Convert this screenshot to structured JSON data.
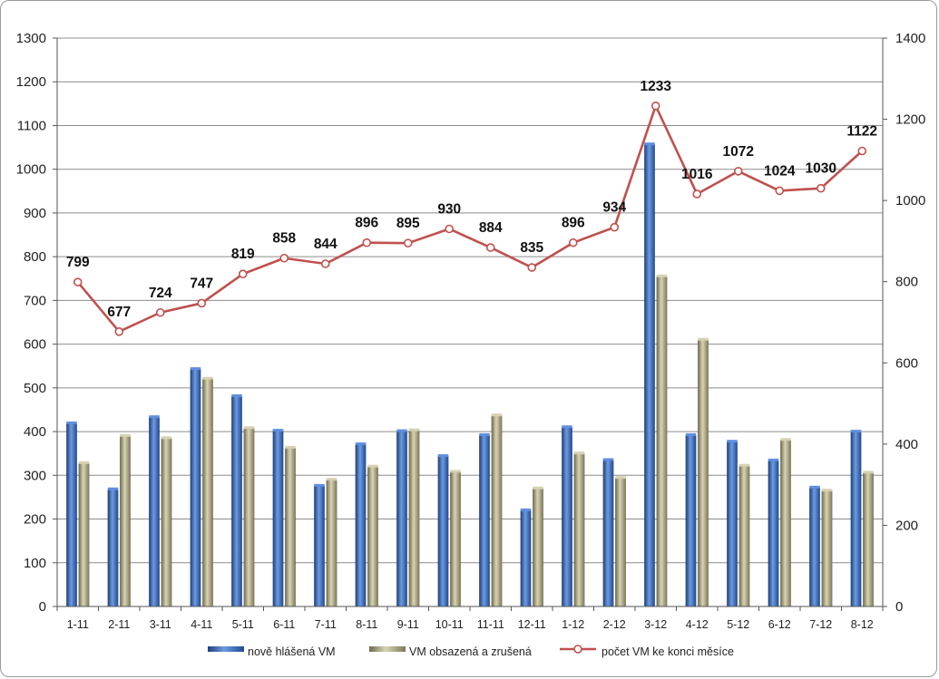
{
  "chart_data": {
    "type": "bar",
    "categories": [
      "1-11",
      "2-11",
      "3-11",
      "4-11",
      "5-11",
      "6-11",
      "7-11",
      "8-11",
      "9-11",
      "10-11",
      "11-11",
      "12-11",
      "1-12",
      "2-12",
      "3-12",
      "4-12",
      "5-12",
      "6-12",
      "7-12",
      "8-12"
    ],
    "series": [
      {
        "name": "nově hlášená VM",
        "type": "bar",
        "axis": "left",
        "color": "#3a6fc4",
        "values": [
          419,
          268,
          433,
          543,
          481,
          402,
          276,
          371,
          401,
          344,
          392,
          220,
          410,
          335,
          1057,
          392,
          377,
          334,
          272,
          400
        ]
      },
      {
        "name": "VM obsazená a zrušená",
        "type": "bar",
        "axis": "left",
        "color": "#b8b391",
        "values": [
          328,
          390,
          385,
          521,
          408,
          363,
          290,
          320,
          403,
          308,
          437,
          270,
          350,
          294,
          755,
          610,
          322,
          381,
          265,
          306
        ]
      },
      {
        "name": "počet VM ke konci měsíce",
        "type": "line",
        "axis": "right",
        "color": "#c0504d",
        "values": [
          799,
          677,
          724,
          747,
          819,
          858,
          844,
          896,
          895,
          930,
          884,
          835,
          896,
          934,
          1233,
          1016,
          1072,
          1024,
          1030,
          1122
        ]
      }
    ],
    "data_labels": [
      "799",
      "677",
      "724",
      "747",
      "819",
      "858",
      "844",
      "896",
      "895",
      "930",
      "884",
      "835",
      "896",
      "934",
      "1233",
      "1016",
      "1072",
      "1024",
      "1030",
      "1122"
    ],
    "ylim": [
      0,
      1300
    ],
    "y2lim": [
      0,
      1400
    ],
    "yticks": [
      "0",
      "100",
      "200",
      "300",
      "400",
      "500",
      "600",
      "700",
      "800",
      "900",
      "1000",
      "1100",
      "1200",
      "1300"
    ],
    "y2ticks": [
      "0",
      "200",
      "400",
      "600",
      "800",
      "1000",
      "1200",
      "1400"
    ],
    "grid": true,
    "legend_position": "bottom"
  }
}
